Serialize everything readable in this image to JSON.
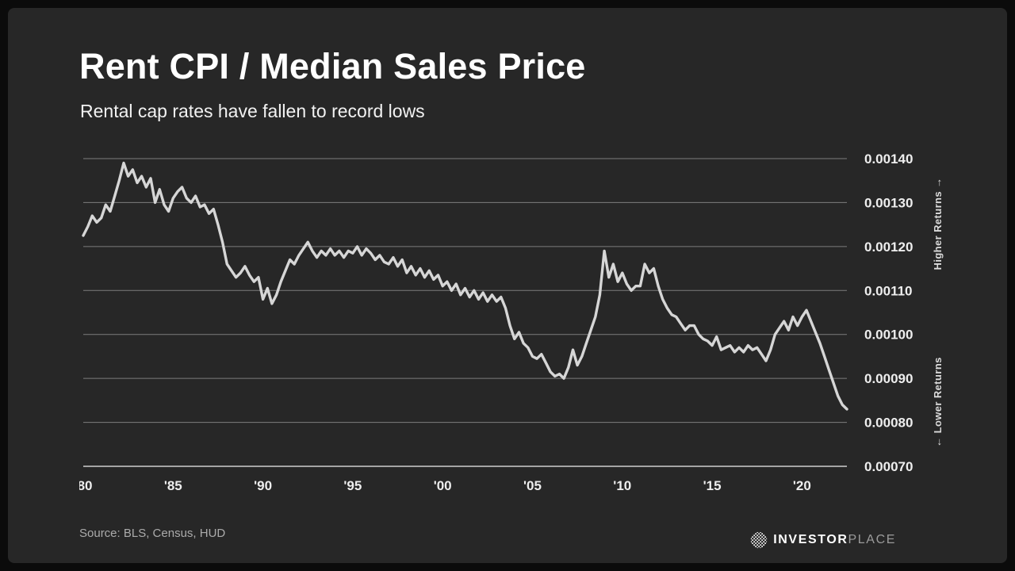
{
  "chart_data": {
    "type": "line",
    "title": "Rent CPI / Median Sales Price",
    "subtitle": "Rental cap rates have fallen to record lows",
    "source": "Source: BLS, Census, HUD",
    "annotations": {
      "right_axis_top": "Higher Returns →",
      "right_axis_bottom": "← Lower Returns"
    },
    "series_name": "Rent CPI / Median Sales Price ratio",
    "grid": "horizontal",
    "legend": "none",
    "line_color": "#d6d6d6",
    "background": "#272727",
    "ylim": [
      0.0007,
      0.0014
    ],
    "yticks": [
      0.0014,
      0.0013,
      0.0012,
      0.0011,
      0.001,
      0.0009,
      0.0008,
      0.0007
    ],
    "ytick_labels": [
      "0.00140",
      "0.00130",
      "0.00120",
      "0.00110",
      "0.00100",
      "0.00090",
      "0.00080",
      "0.00070"
    ],
    "xticks": [
      1980,
      1985,
      1990,
      1995,
      2000,
      2005,
      2010,
      2015,
      2020
    ],
    "xtick_labels": [
      "'80",
      "'85",
      "'90",
      "'95",
      "'00",
      "'05",
      "'10",
      "'15",
      "'20"
    ],
    "x_start": 1980,
    "x_step": 0.25,
    "values": [
      0.001225,
      0.001245,
      0.00127,
      0.001255,
      0.001265,
      0.001295,
      0.00128,
      0.001315,
      0.00135,
      0.00139,
      0.00136,
      0.001375,
      0.001345,
      0.00136,
      0.001335,
      0.001355,
      0.0013,
      0.00133,
      0.001295,
      0.00128,
      0.00131,
      0.001325,
      0.001335,
      0.00131,
      0.0013,
      0.001315,
      0.00129,
      0.001295,
      0.001275,
      0.001285,
      0.00125,
      0.00121,
      0.00116,
      0.001145,
      0.00113,
      0.00114,
      0.001155,
      0.001135,
      0.00112,
      0.00113,
      0.00108,
      0.001105,
      0.00107,
      0.00109,
      0.00112,
      0.001145,
      0.00117,
      0.00116,
      0.00118,
      0.001195,
      0.00121,
      0.00119,
      0.001175,
      0.00119,
      0.00118,
      0.001195,
      0.00118,
      0.00119,
      0.001175,
      0.00119,
      0.001185,
      0.0012,
      0.00118,
      0.001195,
      0.001185,
      0.00117,
      0.00118,
      0.001165,
      0.00116,
      0.001175,
      0.001155,
      0.00117,
      0.00114,
      0.001155,
      0.001135,
      0.00115,
      0.00113,
      0.001145,
      0.001125,
      0.001135,
      0.00111,
      0.00112,
      0.0011,
      0.001115,
      0.00109,
      0.001105,
      0.001085,
      0.0011,
      0.00108,
      0.001095,
      0.001075,
      0.00109,
      0.001075,
      0.001085,
      0.00106,
      0.00102,
      0.00099,
      0.001005,
      0.00098,
      0.00097,
      0.00095,
      0.000945,
      0.000955,
      0.000935,
      0.000915,
      0.000905,
      0.00091,
      0.0009,
      0.000925,
      0.000965,
      0.00093,
      0.00095,
      0.00098,
      0.00101,
      0.00104,
      0.00109,
      0.00119,
      0.00113,
      0.00116,
      0.00112,
      0.00114,
      0.001115,
      0.0011,
      0.00111,
      0.00111,
      0.00116,
      0.00114,
      0.00115,
      0.00111,
      0.00108,
      0.00106,
      0.001045,
      0.00104,
      0.001025,
      0.00101,
      0.00102,
      0.00102,
      0.001,
      0.00099,
      0.000985,
      0.000975,
      0.000995,
      0.000965,
      0.00097,
      0.000975,
      0.00096,
      0.00097,
      0.00096,
      0.000975,
      0.000965,
      0.00097,
      0.000955,
      0.00094,
      0.000965,
      0.001,
      0.001015,
      0.00103,
      0.00101,
      0.00104,
      0.00102,
      0.00104,
      0.001055,
      0.00103,
      0.001005,
      0.00098,
      0.00095,
      0.00092,
      0.00089,
      0.00086,
      0.00084,
      0.00083
    ]
  },
  "branding": {
    "logo_part1": "INVESTOR",
    "logo_part2": "PLACE"
  }
}
